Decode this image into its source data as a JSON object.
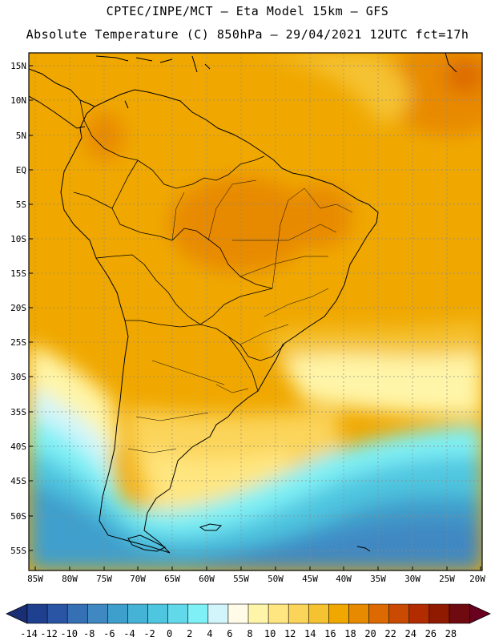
{
  "header": {
    "line1": "CPTEC/INPE/MCT –  Eta Model 15km – GFS",
    "line2": "Absolute Temperature (C) 850hPa – 29/04/2021 12UTC fct=17h"
  },
  "axes": {
    "lat_labels": [
      "15N",
      "10N",
      "5N",
      "EQ",
      "5S",
      "10S",
      "15S",
      "20S",
      "25S",
      "30S",
      "35S",
      "40S",
      "45S",
      "50S",
      "55S"
    ],
    "lon_labels": [
      "85W",
      "80W",
      "75W",
      "70W",
      "65W",
      "60W",
      "55W",
      "50W",
      "45W",
      "40W",
      "35W",
      "30W",
      "25W",
      "20W"
    ]
  },
  "colorbar": {
    "labels": [
      "-14",
      "-12",
      "-10",
      "-8",
      "-6",
      "-4",
      "-2",
      "0",
      "2",
      "4",
      "6",
      "8",
      "10",
      "12",
      "14",
      "16",
      "18",
      "20",
      "22",
      "24",
      "26",
      "28"
    ],
    "colors": [
      "#1f3f8f",
      "#2a55a4",
      "#3570b4",
      "#3f88c2",
      "#3f9fcc",
      "#45b3d6",
      "#4fc6e0",
      "#62d9ea",
      "#7ff0f5",
      "#d2f5fb",
      "#fffbe6",
      "#fff5a8",
      "#ffe680",
      "#fbd45a",
      "#f5c232",
      "#f0a800",
      "#e88a00",
      "#dd6a00",
      "#c94a00",
      "#b32c00",
      "#8f1a00",
      "#6e0a10"
    ],
    "left_arrow_color": "#1a2f73",
    "right_arrow_color": "#6a0020"
  }
}
